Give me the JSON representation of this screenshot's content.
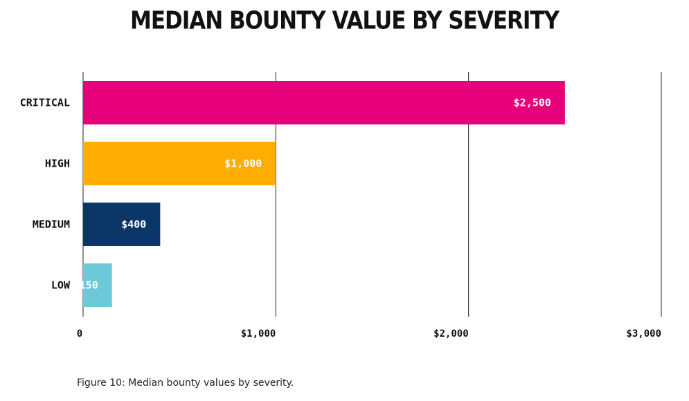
{
  "chart_data": {
    "type": "bar",
    "orientation": "horizontal",
    "title": "MEDIAN BOUNTY VALUE BY SEVERITY",
    "categories": [
      "CRITICAL",
      "HIGH",
      "MEDIUM",
      "LOW"
    ],
    "values": [
      2500,
      1000,
      400,
      150
    ],
    "data_labels": [
      "$2,500",
      "$1,000",
      "$400",
      "$150"
    ],
    "colors": [
      "#e6007a",
      "#ffad00",
      "#0b3668",
      "#6ccad8"
    ],
    "xlim": [
      0,
      3000
    ],
    "x_ticks": [
      0,
      1000,
      2000,
      3000
    ],
    "x_tick_labels": [
      "0",
      "$1,000",
      "$2,000",
      "$3,000"
    ],
    "grid": "vertical",
    "xlabel": "",
    "ylabel": ""
  },
  "caption": {
    "lead": "Figure 10:",
    "text": " Median bounty values by severity."
  }
}
